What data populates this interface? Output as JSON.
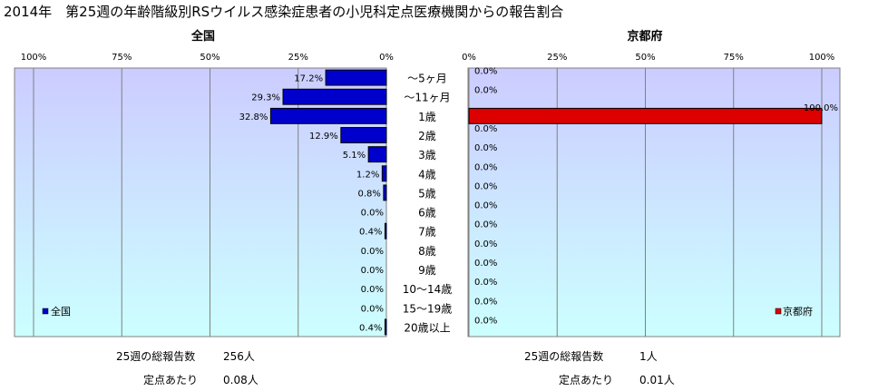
{
  "title": "2014年　第25週の年齢階級別RSウイルス感染症患者の小児科定点医療機関からの報告割合",
  "categories": [
    "～5ヶ月",
    "～11ヶ月",
    "1歳",
    "2歳",
    "3歳",
    "4歳",
    "5歳",
    "6歳",
    "7歳",
    "8歳",
    "9歳",
    "10～14歳",
    "15～19歳",
    "20歳以上"
  ],
  "colors": {
    "national_bar": "#0000cc",
    "kyoto_bar": "#dd0000",
    "grid": "#808080",
    "bg_top": "#ccccff",
    "bg_bottom": "#ccffff"
  },
  "chart_data": [
    {
      "type": "bar",
      "orientation": "horizontal",
      "direction": "right-to-left",
      "title": "全国",
      "legend": "全国",
      "legend_position": "bottom-left",
      "x_ticks": [
        "100%",
        "75%",
        "50%",
        "25%",
        "0%"
      ],
      "xlim": [
        0,
        100
      ],
      "grid": true,
      "values": [
        17.2,
        29.3,
        32.8,
        12.9,
        5.1,
        1.2,
        0.8,
        0.0,
        0.4,
        0.0,
        0.0,
        0.0,
        0.0,
        0.4
      ],
      "value_labels": [
        "17.2%",
        "29.3%",
        "32.8%",
        "12.9%",
        "5.1%",
        "1.2%",
        "0.8%",
        "0.0%",
        "0.4%",
        "0.0%",
        "0.0%",
        "0.0%",
        "0.0%",
        "0.4%"
      ]
    },
    {
      "type": "bar",
      "orientation": "horizontal",
      "direction": "left-to-right",
      "title": "京都府",
      "legend": "京都府",
      "legend_position": "bottom-right",
      "x_ticks": [
        "0%",
        "25%",
        "50%",
        "75%",
        "100%"
      ],
      "xlim": [
        0,
        100
      ],
      "grid": true,
      "values": [
        0.0,
        0.0,
        100.0,
        0.0,
        0.0,
        0.0,
        0.0,
        0.0,
        0.0,
        0.0,
        0.0,
        0.0,
        0.0,
        0.0
      ],
      "value_labels": [
        "0.0%",
        "0.0%",
        "100.0%",
        "0.0%",
        "0.0%",
        "0.0%",
        "0.0%",
        "0.0%",
        "0.0%",
        "0.0%",
        "0.0%",
        "0.0%",
        "0.0%",
        "0.0%"
      ]
    }
  ],
  "stats": {
    "national": {
      "total_label": "25週の総報告数",
      "total_value": "256人",
      "per_label": "定点あたり",
      "per_value": "0.08人"
    },
    "kyoto": {
      "total_label": "25週の総報告数",
      "total_value": "1人",
      "per_label": "定点あたり",
      "per_value": "0.01人"
    }
  }
}
